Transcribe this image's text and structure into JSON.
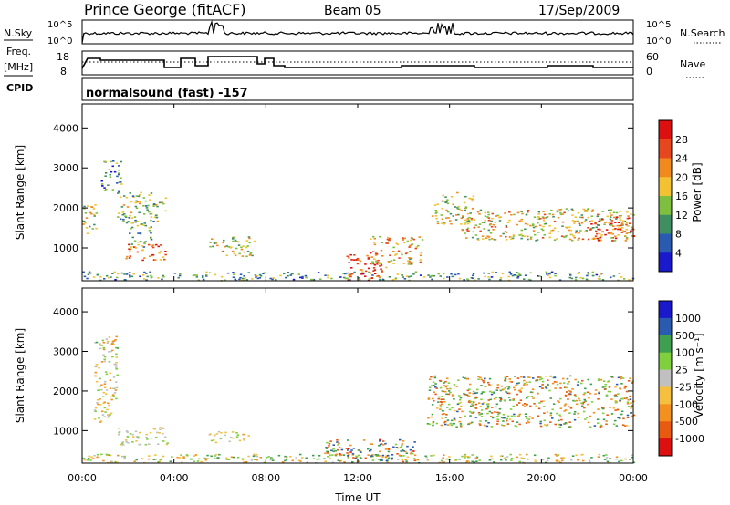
{
  "header": {
    "station": "Prince George (fitACF)",
    "beam": "Beam 05",
    "date": "17/Sep/2009"
  },
  "status_panels": {
    "nsky_label": "N.Sky",
    "nsearch_label": "N.Search",
    "freq_label": "Freq.",
    "freq_unit": "[MHz]",
    "nave_label": "Nave",
    "cpid_label": "CPID",
    "cpid_text": "normalsound (fast) -157",
    "noise_left_ticks": [
      "10^5",
      "10^0"
    ],
    "noise_right_ticks": [
      "10^5",
      "10^0"
    ],
    "freq_ticks": [
      "18",
      "8"
    ],
    "nave_ticks": [
      "60",
      "0"
    ]
  },
  "colors": {
    "power_scale": [
      "#1a1acc",
      "#2b5bb0",
      "#3f8f63",
      "#7fbf3f",
      "#f2c232",
      "#f08a1e",
      "#e6471e",
      "#dd1010"
    ],
    "velocity_scale": [
      "#dd1010",
      "#e85a10",
      "#f29020",
      "#f5c040",
      "#c0c0c0",
      "#7fcf3f",
      "#3f9f50",
      "#2b5bb0",
      "#1a1acc"
    ]
  },
  "chart_data": [
    {
      "type": "heatmap",
      "name": "power",
      "ylabel": "Slant Range [km]",
      "xlabel": "Time UT",
      "x_ticks": [
        "00:00",
        "04:00",
        "08:00",
        "12:00",
        "16:00",
        "20:00",
        "00:00"
      ],
      "y_ticks": [
        "1000",
        "2000",
        "3000",
        "4000"
      ],
      "ylim": [
        180,
        4600
      ],
      "xlim_hours": [
        0,
        24
      ],
      "colorbar_label": "Power [dB]",
      "colorbar_ticks": [
        "4",
        "8",
        "12",
        "16",
        "20",
        "24",
        "28"
      ],
      "scatter_regions": [
        {
          "t0": 0.0,
          "t1": 24.0,
          "r0": 200,
          "r1": 420,
          "level": 0.35
        },
        {
          "t0": 0.0,
          "t1": 0.6,
          "r0": 1300,
          "r1": 2100,
          "level": 0.5
        },
        {
          "t0": 0.8,
          "t1": 1.7,
          "r0": 2400,
          "r1": 3200,
          "level": 0.3
        },
        {
          "t0": 1.5,
          "t1": 3.6,
          "r0": 1600,
          "r1": 2400,
          "level": 0.45
        },
        {
          "t0": 1.8,
          "t1": 3.6,
          "r0": 700,
          "r1": 1100,
          "level": 0.8
        },
        {
          "t0": 2.0,
          "t1": 3.0,
          "r0": 1000,
          "r1": 1600,
          "level": 0.4
        },
        {
          "t0": 5.5,
          "t1": 7.5,
          "r0": 800,
          "r1": 1300,
          "level": 0.5
        },
        {
          "t0": 11.5,
          "t1": 13.2,
          "r0": 200,
          "r1": 900,
          "level": 0.85
        },
        {
          "t0": 12.5,
          "t1": 14.8,
          "r0": 600,
          "r1": 1300,
          "level": 0.6
        },
        {
          "t0": 15.2,
          "t1": 17.0,
          "r0": 1600,
          "r1": 2400,
          "level": 0.5
        },
        {
          "t0": 16.5,
          "t1": 24.0,
          "r0": 1200,
          "r1": 2000,
          "level": 0.55
        },
        {
          "t0": 22.0,
          "t1": 24.0,
          "r0": 1200,
          "r1": 1800,
          "level": 0.8
        }
      ]
    },
    {
      "type": "heatmap",
      "name": "velocity",
      "ylabel": "Slant Range [km]",
      "xlabel": "Time UT",
      "x_ticks": [
        "00:00",
        "04:00",
        "08:00",
        "12:00",
        "16:00",
        "20:00",
        "00:00"
      ],
      "y_ticks": [
        "1000",
        "2000",
        "3000",
        "4000"
      ],
      "ylim": [
        180,
        4600
      ],
      "xlim_hours": [
        0,
        24
      ],
      "colorbar_label": "Velocity [m s⁻¹]",
      "colorbar_ticks": [
        "1000",
        "500",
        "100",
        "25",
        "-25",
        "-100",
        "-500",
        "-1000"
      ],
      "scatter_regions": [
        {
          "t0": 0.0,
          "t1": 24.0,
          "r0": 200,
          "r1": 420,
          "level": 0.3
        },
        {
          "t0": 0.5,
          "t1": 1.5,
          "r0": 1200,
          "r1": 3400,
          "level": 0.2
        },
        {
          "t0": 1.5,
          "t1": 3.7,
          "r0": 650,
          "r1": 1100,
          "level": 0.1
        },
        {
          "t0": 5.5,
          "t1": 7.3,
          "r0": 700,
          "r1": 1000,
          "level": 0.1
        },
        {
          "t0": 10.5,
          "t1": 14.5,
          "r0": 200,
          "r1": 800,
          "level": 0.55
        },
        {
          "t0": 15.0,
          "t1": 24.0,
          "r0": 1100,
          "r1": 2400,
          "level": 0.45
        }
      ]
    }
  ]
}
